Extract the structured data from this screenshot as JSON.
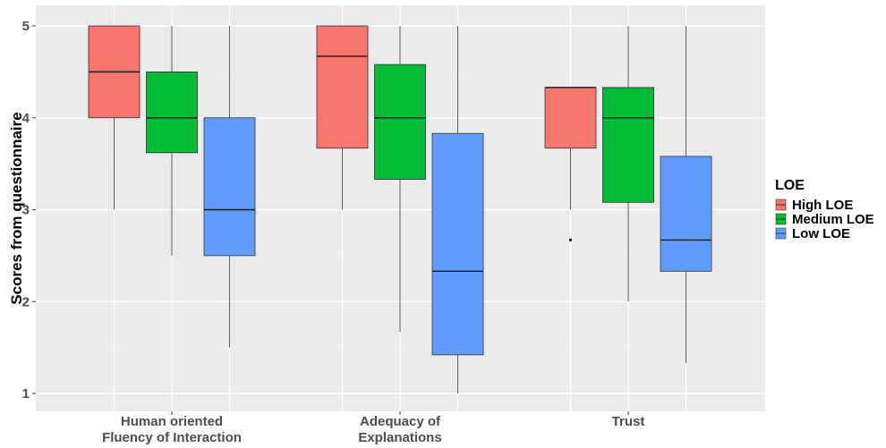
{
  "chart_data": {
    "type": "box",
    "title": "",
    "xlabel": "",
    "ylabel": "Scores from questionnaire",
    "ylim": [
      0.9,
      5.1
    ],
    "yticks": [
      1,
      2,
      3,
      4,
      5
    ],
    "grid": true,
    "legend_position": "right",
    "legend_title": "LOE",
    "categories": [
      [
        "Human oriented",
        "Fluency of Interaction"
      ],
      [
        "Adequacy of",
        "Explanations"
      ],
      [
        "Trust"
      ]
    ],
    "series": [
      {
        "name": "High LOE",
        "color": "#F8766D",
        "boxes": [
          {
            "min": 3.0,
            "q1": 4.0,
            "median": 4.5,
            "q3": 5.0,
            "max": 5.0,
            "outliers": []
          },
          {
            "min": 3.0,
            "q1": 3.67,
            "median": 4.67,
            "q3": 5.0,
            "max": 5.0,
            "outliers": []
          },
          {
            "min": 3.0,
            "q1": 3.67,
            "median": 4.33,
            "q3": 4.33,
            "max": 4.33,
            "outliers": [
              2.67
            ]
          }
        ]
      },
      {
        "name": "Medium LOE",
        "color": "#00BA38",
        "boxes": [
          {
            "min": 2.5,
            "q1": 3.62,
            "median": 4.0,
            "q3": 4.5,
            "max": 5.0,
            "outliers": []
          },
          {
            "min": 1.67,
            "q1": 3.33,
            "median": 4.0,
            "q3": 4.58,
            "max": 5.0,
            "outliers": []
          },
          {
            "min": 2.0,
            "q1": 3.08,
            "median": 4.0,
            "q3": 4.33,
            "max": 5.0,
            "outliers": []
          }
        ]
      },
      {
        "name": "Low LOE",
        "color": "#619CFF",
        "boxes": [
          {
            "min": 1.5,
            "q1": 2.5,
            "median": 3.0,
            "q3": 4.0,
            "max": 5.0,
            "outliers": []
          },
          {
            "min": 1.0,
            "q1": 1.42,
            "median": 2.33,
            "q3": 3.83,
            "max": 5.0,
            "outliers": []
          },
          {
            "min": 1.33,
            "q1": 2.33,
            "median": 2.67,
            "q3": 3.58,
            "max": 5.0,
            "outliers": []
          }
        ]
      }
    ]
  }
}
